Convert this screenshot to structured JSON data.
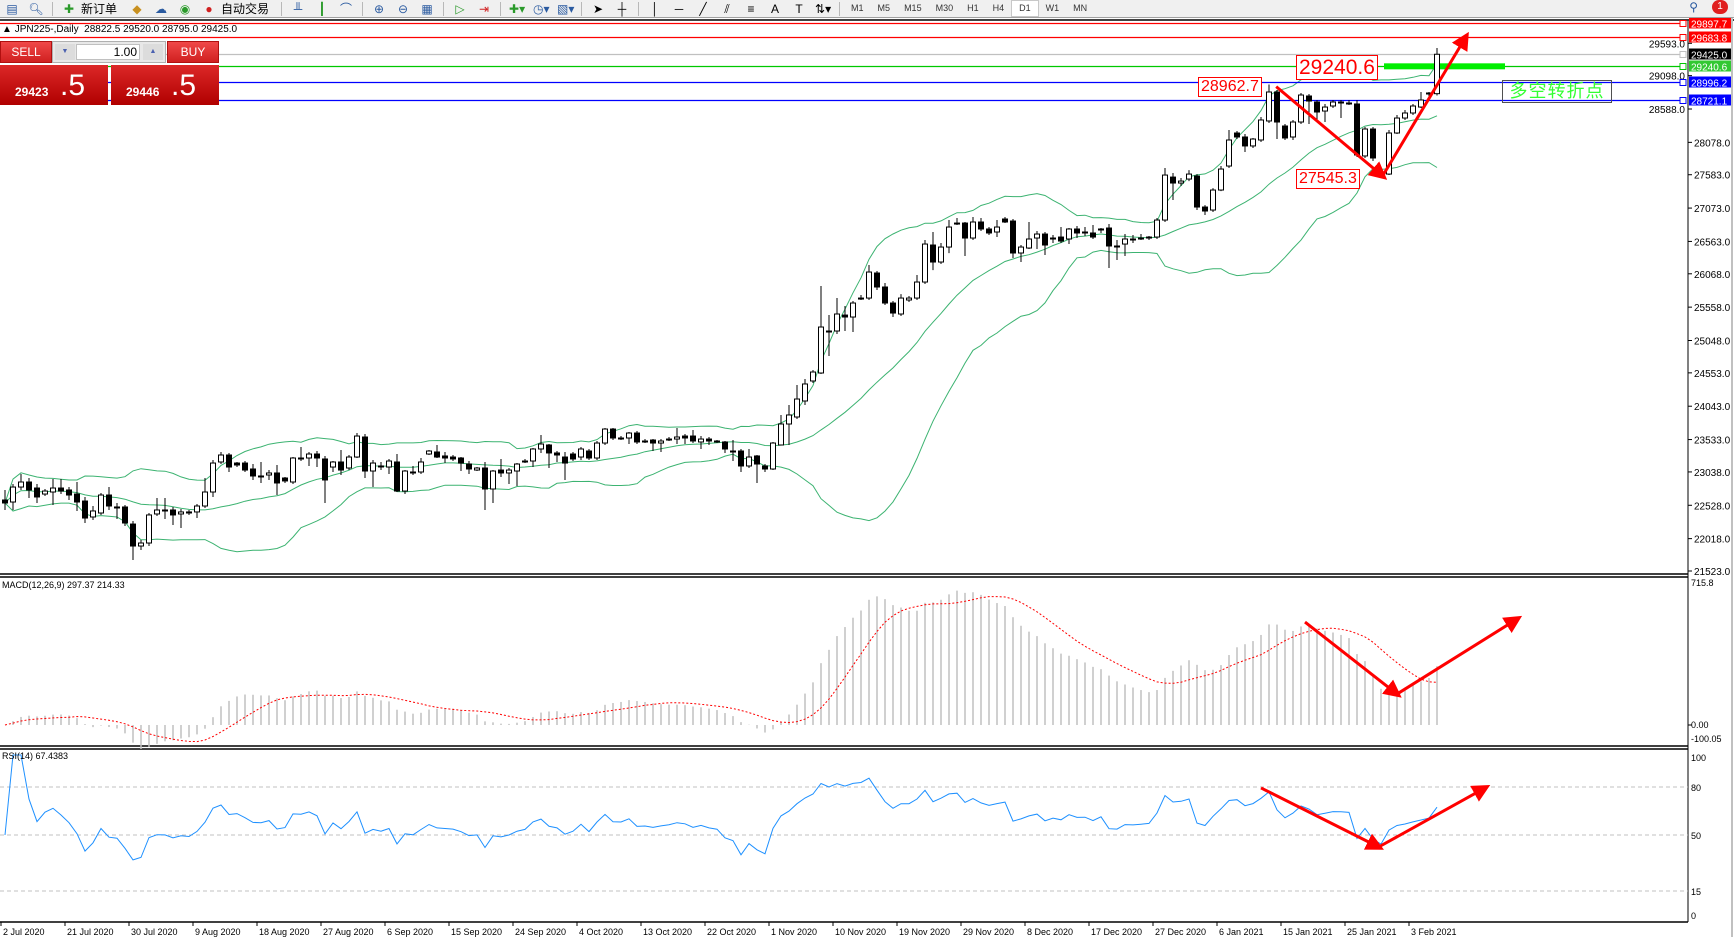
{
  "toolbar": {
    "new_order_label": "新订单",
    "auto_trading_label": "自动交易",
    "timeframes": [
      "M1",
      "M5",
      "M15",
      "M30",
      "H1",
      "H4",
      "D1",
      "W1",
      "MN"
    ],
    "active_timeframe": "D1",
    "notification_count": "1"
  },
  "chart_header": {
    "symbol": "JPN225-,Daily",
    "ohlc_text": "28822.5 29520.0 28795.0 29425.0"
  },
  "trade_panel": {
    "sell_label": "SELL",
    "buy_label": "BUY",
    "lot_value": "1.00",
    "sell_price_main": "29423",
    "sell_price_frac": ".5",
    "buy_price_main": "29446",
    "buy_price_frac": ".5",
    "color": "#d02020"
  },
  "annotations": {
    "label_high": "28962.7",
    "label_level": "29240.6",
    "label_low": "27545.3",
    "label_turning_point": "多空转折点",
    "arrow_color": "#ff0000",
    "main_arrows": [
      [
        158.9,
        28930
      ],
      [
        172.2,
        27564
      ],
      [
        182.6,
        29689
      ]
    ],
    "macd_arrows": [
      [
        162.5,
        519
      ],
      [
        174,
        156
      ],
      [
        189,
        534
      ]
    ],
    "rsi_arrows": [
      [
        157,
        79.4
      ],
      [
        171.7,
        42.5
      ],
      [
        185,
        79.4
      ]
    ]
  },
  "indicators": {
    "macd_label": "MACD(12,26,9) 297.37 214.33",
    "rsi_label": "RSI(14) 67.4383"
  },
  "chart_data": {
    "type": "candlestick",
    "symbol": "JPN225-",
    "timeframe": "Daily",
    "price_range": [
      21523.0,
      29897.7
    ],
    "price_ticks": [
      "29593.0",
      "29098.0",
      "28588.0",
      "28078.0",
      "27583.0",
      "27073.0",
      "26563.0",
      "26068.0",
      "25558.0",
      "25048.0",
      "24553.0",
      "24043.0",
      "23533.0",
      "23038.0",
      "22528.0",
      "22018.0",
      "21523.0"
    ],
    "date_labels": [
      "2 Jul 2020",
      "21 Jul 2020",
      "30 Jul 2020",
      "9 Aug 2020",
      "18 Aug 2020",
      "27 Aug 2020",
      "6 Sep 2020",
      "15 Sep 2020",
      "24 Sep 2020",
      "4 Oct 2020",
      "13 Oct 2020",
      "22 Oct 2020",
      "1 Nov 2020",
      "10 Nov 2020",
      "19 Nov 2020",
      "29 Nov 2020",
      "8 Dec 2020",
      "17 Dec 2020",
      "27 Dec 2020",
      "6 Jan 2021",
      "15 Jan 2021",
      "25 Jan 2021",
      "3 Feb 2021"
    ],
    "hlines": [
      {
        "price": "29897.7",
        "color": "#ff0000"
      },
      {
        "price": "29683.8",
        "color": "#ff0000"
      },
      {
        "price": "29425.0",
        "color": "#000000",
        "line": "#c0c0c0"
      },
      {
        "price": "29240.6",
        "color": "#32c832",
        "line": "#00c800"
      },
      {
        "price": "28996.2",
        "color": "#0000ff"
      },
      {
        "price": "28721.1",
        "color": "#0000ff"
      }
    ],
    "bollinger": {
      "period": 20,
      "deviation": 2,
      "color": "#3cb371"
    },
    "macd": {
      "fast": 12,
      "slow": 26,
      "signal": 9,
      "range": [
        -100.05,
        715.8
      ],
      "ticks": [
        "715.8",
        "0.00",
        "-100.05"
      ],
      "hist_color": "#c0c0c0",
      "signal_color": "#ff0000"
    },
    "rsi": {
      "period": 14,
      "range": [
        0,
        100
      ],
      "levels": [
        80,
        50,
        15
      ],
      "ticks": [
        "100",
        "80",
        "50",
        "15",
        "0"
      ],
      "color": "#1e90ff"
    },
    "ohlc": [
      [
        22609,
        22762,
        22456,
        22563
      ],
      [
        22578,
        22853,
        22456,
        22807
      ],
      [
        22807,
        23006,
        22762,
        22884
      ],
      [
        22884,
        22945,
        22640,
        22762
      ],
      [
        22792,
        22853,
        22563,
        22655
      ],
      [
        22700,
        22777,
        22670,
        22746
      ],
      [
        22731,
        22930,
        22533,
        22792
      ],
      [
        22792,
        22930,
        22700,
        22746
      ],
      [
        22762,
        22807,
        22609,
        22685
      ],
      [
        22700,
        22884,
        22441,
        22578
      ],
      [
        22593,
        22655,
        22257,
        22333
      ],
      [
        22349,
        22517,
        22303,
        22441
      ],
      [
        22410,
        22716,
        22380,
        22685
      ],
      [
        22685,
        22807,
        22456,
        22517
      ],
      [
        22502,
        22563,
        22318,
        22495
      ],
      [
        22502,
        22533,
        22211,
        22257
      ],
      [
        22241,
        22288,
        21691,
        21905
      ],
      [
        21905,
        21997,
        21844,
        21951
      ],
      [
        21951,
        22410,
        21905,
        22380
      ],
      [
        22395,
        22640,
        22364,
        22456
      ],
      [
        22456,
        22640,
        22318,
        22450
      ],
      [
        22456,
        22502,
        22226,
        22380
      ],
      [
        22395,
        22472,
        22180,
        22426
      ],
      [
        22426,
        22456,
        22380,
        22410
      ],
      [
        22426,
        22548,
        22334,
        22517
      ],
      [
        22517,
        22945,
        22487,
        22731
      ],
      [
        22731,
        23220,
        22655,
        23174
      ],
      [
        23190,
        23343,
        23159,
        23297
      ],
      [
        23297,
        23328,
        23037,
        23113
      ],
      [
        23174,
        23190,
        23113,
        23144
      ],
      [
        23174,
        23205,
        23037,
        23067
      ],
      [
        23083,
        23159,
        22915,
        22976
      ],
      [
        22976,
        23190,
        22869,
        22970
      ],
      [
        22991,
        23067,
        22915,
        23022
      ],
      [
        23022,
        23144,
        22685,
        22869
      ],
      [
        22945,
        22960,
        22869,
        22900
      ],
      [
        22884,
        23266,
        22853,
        23251
      ],
      [
        23251,
        23419,
        23205,
        23245
      ],
      [
        23251,
        23343,
        23129,
        23312
      ],
      [
        23312,
        23358,
        23113,
        23251
      ],
      [
        23236,
        23282,
        22563,
        22915
      ],
      [
        23113,
        23205,
        23037,
        23190
      ],
      [
        23190,
        23373,
        22991,
        23067
      ],
      [
        23098,
        23297,
        23067,
        23266
      ],
      [
        23266,
        23633,
        23251,
        23587
      ],
      [
        23572,
        23618,
        22945,
        23052
      ],
      [
        23052,
        23220,
        22807,
        23174
      ],
      [
        23129,
        23190,
        23067,
        23125
      ],
      [
        23113,
        23236,
        23006,
        23205
      ],
      [
        23190,
        23312,
        22731,
        22746
      ],
      [
        22746,
        23067,
        22700,
        23052
      ],
      [
        23037,
        23129,
        22991,
        23022
      ],
      [
        23037,
        23251,
        23006,
        23190
      ],
      [
        23312,
        23373,
        23297,
        23358
      ],
      [
        23343,
        23450,
        23251,
        23266
      ],
      [
        23282,
        23343,
        23174,
        23251
      ],
      [
        23266,
        23297,
        23205,
        23236
      ],
      [
        23251,
        23266,
        23052,
        23174
      ],
      [
        23159,
        23205,
        23006,
        23083
      ],
      [
        23067,
        23113,
        23052,
        23098
      ],
      [
        23098,
        23190,
        22456,
        22777
      ],
      [
        22777,
        23067,
        22563,
        23052
      ],
      [
        23067,
        23236,
        22960,
        23022
      ],
      [
        23022,
        23098,
        22853,
        23067
      ],
      [
        23052,
        23174,
        22823,
        23159
      ],
      [
        23205,
        23236,
        23174,
        23200
      ],
      [
        23205,
        23404,
        23113,
        23389
      ],
      [
        23389,
        23603,
        23328,
        23465
      ],
      [
        23450,
        23465,
        23098,
        23328
      ],
      [
        23328,
        23358,
        23190,
        23297
      ],
      [
        23266,
        23343,
        22915,
        23174
      ],
      [
        23312,
        23343,
        23205,
        23236
      ],
      [
        23266,
        23419,
        23220,
        23389
      ],
      [
        23358,
        23389,
        23220,
        23251
      ],
      [
        23251,
        23511,
        23220,
        23480
      ],
      [
        23480,
        23710,
        23450,
        23694
      ],
      [
        23694,
        23710,
        23526,
        23557
      ],
      [
        23557,
        23587,
        23526,
        23550
      ],
      [
        23557,
        23649,
        23465,
        23633
      ],
      [
        23633,
        23664,
        23465,
        23496
      ],
      [
        23511,
        23541,
        23480,
        23505
      ],
      [
        23526,
        23541,
        23358,
        23480
      ],
      [
        23480,
        23541,
        23343,
        23511
      ],
      [
        23541,
        23572,
        23511,
        23535
      ],
      [
        23541,
        23710,
        23465,
        23572
      ],
      [
        23587,
        23618,
        23465,
        23557
      ],
      [
        23587,
        23679,
        23480,
        23511
      ],
      [
        23496,
        23587,
        23389,
        23541
      ],
      [
        23541,
        23572,
        23450,
        23511
      ],
      [
        23511,
        23526,
        23480,
        23496
      ],
      [
        23496,
        23511,
        23328,
        23389
      ],
      [
        23358,
        23526,
        23205,
        23352
      ],
      [
        23358,
        23389,
        23037,
        23129
      ],
      [
        23129,
        23389,
        23098,
        23266
      ],
      [
        23282,
        23297,
        22869,
        23159
      ],
      [
        23129,
        23159,
        23037,
        23083
      ],
      [
        23083,
        23496,
        23067,
        23480
      ],
      [
        23450,
        23908,
        23450,
        23771
      ],
      [
        23771,
        24061,
        23450,
        23909
      ],
      [
        23878,
        24367,
        23848,
        24153
      ],
      [
        24123,
        24459,
        24061,
        24383
      ],
      [
        24429,
        24597,
        24398,
        24566
      ],
      [
        24551,
        25881,
        24536,
        25254
      ],
      [
        25193,
        25437,
        24811,
        25190
      ],
      [
        25193,
        25697,
        25147,
        25453
      ],
      [
        25437,
        25575,
        25193,
        25407
      ],
      [
        25407,
        25651,
        25178,
        25621
      ],
      [
        25697,
        25743,
        25667,
        25690
      ],
      [
        25697,
        26202,
        25667,
        26095
      ],
      [
        26080,
        26110,
        25820,
        25866
      ],
      [
        25866,
        25927,
        25590,
        25621
      ],
      [
        25621,
        25651,
        25407,
        25468
      ],
      [
        25453,
        25758,
        25422,
        25697
      ],
      [
        25667,
        25728,
        25636,
        25697
      ],
      [
        25697,
        26049,
        25667,
        25942
      ],
      [
        25942,
        26584,
        25912,
        26523
      ],
      [
        26508,
        26707,
        26125,
        26248
      ],
      [
        26248,
        26538,
        26217,
        26477
      ],
      [
        26477,
        26890,
        26385,
        26783
      ],
      [
        26844,
        26921,
        26814,
        26840
      ],
      [
        26844,
        26860,
        26340,
        26615
      ],
      [
        26615,
        26936,
        26584,
        26860
      ],
      [
        26860,
        26921,
        26722,
        26753
      ],
      [
        26753,
        26783,
        26661,
        26692
      ],
      [
        26707,
        26890,
        26631,
        26783
      ],
      [
        26906,
        26936,
        26844,
        26860
      ],
      [
        26875,
        26906,
        26309,
        26386
      ],
      [
        26386,
        26508,
        26248,
        26477
      ],
      [
        26462,
        26860,
        26447,
        26600
      ],
      [
        26615,
        26722,
        26447,
        26676
      ],
      [
        26676,
        26707,
        26355,
        26508
      ],
      [
        26615,
        26661,
        26538,
        26610
      ],
      [
        26630,
        26783,
        26538,
        26569
      ],
      [
        26600,
        26768,
        26523,
        26753
      ],
      [
        26753,
        26799,
        26615,
        26692
      ],
      [
        26707,
        26783,
        26645,
        26700
      ],
      [
        26692,
        26814,
        26600,
        26630
      ],
      [
        26753,
        26768,
        26692,
        26745
      ],
      [
        26768,
        26829,
        26156,
        26493
      ],
      [
        26493,
        26584,
        26279,
        26485
      ],
      [
        26523,
        26676,
        26340,
        26600
      ],
      [
        26600,
        26661,
        26538,
        26595
      ],
      [
        26615,
        26676,
        26584,
        26610
      ],
      [
        26615,
        26645,
        26584,
        26630
      ],
      [
        26630,
        26921,
        26600,
        26890
      ],
      [
        26890,
        27685,
        26860,
        27578
      ],
      [
        27547,
        27609,
        27196,
        27456
      ],
      [
        27456,
        27532,
        27410,
        27486
      ],
      [
        27517,
        27654,
        27486,
        27593
      ],
      [
        27563,
        27593,
        27043,
        27089
      ],
      [
        27089,
        27119,
        26967,
        27028
      ],
      [
        27043,
        27379,
        27013,
        27349
      ],
      [
        27349,
        27716,
        27333,
        27670
      ],
      [
        27716,
        28267,
        27685,
        28114
      ],
      [
        28221,
        28251,
        28129,
        28160
      ],
      [
        28160,
        28206,
        27930,
        28023
      ],
      [
        28023,
        28145,
        27992,
        28129
      ],
      [
        28114,
        28466,
        28083,
        28420
      ],
      [
        28405,
        28963,
        28374,
        28848
      ],
      [
        28848,
        28878,
        28129,
        28389
      ],
      [
        28328,
        28359,
        28114,
        28145
      ],
      [
        28160,
        28420,
        28114,
        28389
      ],
      [
        28389,
        28833,
        28359,
        28802
      ],
      [
        28787,
        28817,
        28359,
        28710
      ],
      [
        28695,
        28726,
        28389,
        28542
      ],
      [
        28557,
        28665,
        28389,
        28618
      ],
      [
        28634,
        28726,
        28603,
        28695
      ],
      [
        28695,
        28726,
        28451,
        28690
      ],
      [
        28680,
        28726,
        28649,
        28675
      ],
      [
        28665,
        28726,
        27854,
        27885
      ],
      [
        27870,
        28313,
        27839,
        28282
      ],
      [
        28282,
        28313,
        27793,
        27839
      ],
      [
        27625,
        27654,
        27545,
        27620
      ],
      [
        27593,
        28267,
        27578,
        28221
      ],
      [
        28221,
        28497,
        28206,
        28450
      ],
      [
        28450,
        28573,
        28420,
        28527
      ],
      [
        28527,
        28665,
        28496,
        28634
      ],
      [
        28618,
        28848,
        28603,
        28726
      ],
      [
        28833,
        28848,
        28787,
        28818
      ],
      [
        28822.5,
        29520.0,
        28795.0,
        29425.0
      ]
    ]
  }
}
